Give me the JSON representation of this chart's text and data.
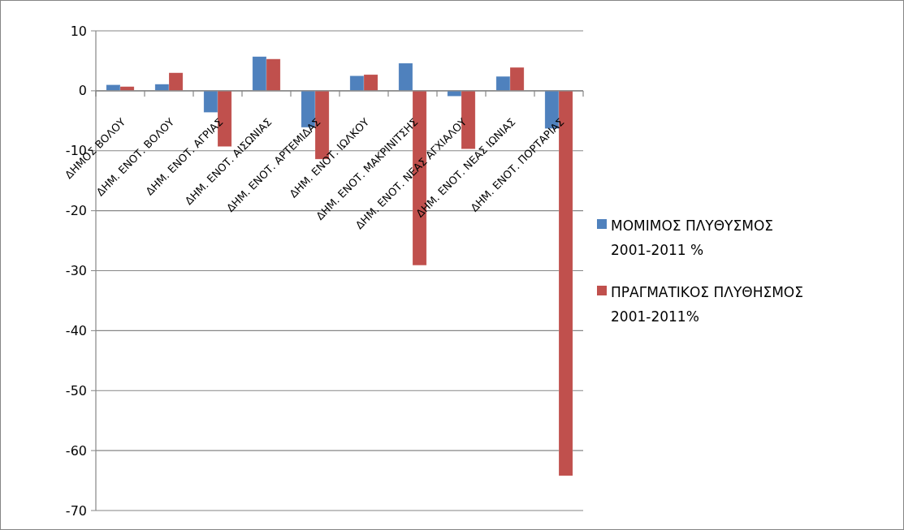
{
  "chart_data": {
    "type": "bar",
    "categories": [
      "ΔΗΜΟΣ ΒΟΛΟΥ",
      "ΔΗΜ. ΕΝΟΤ. ΒΟΛΟΥ",
      "ΔΗΜ. ΕΝΟΤ. ΑΓΡΙΑΣ",
      "ΔΗΜ. ΕΝΟΤ. ΑΙΣΩΝΙΑΣ",
      "ΔΗΜ. ΕΝΟΤ. ΑΡΤΕΜΙΔΑΣ",
      "ΔΗΜ. ΕΝΟΤ. ΙΩΛΚΟΥ",
      "ΔΗΜ. ΕΝΟΤ. ΜΑΚΡΙΝΙΤΣΗΣ",
      "ΔΗΜ. ΕΝΟΤ. ΝΕΑΣ ΑΓΧΙΑΛΟΥ",
      "ΔΗΜ. ΕΝΟΤ. ΝΕΑΣ ΙΩΝΙΑΣ",
      "ΔΗΜ. ΕΝΟΤ. ΠΟΡΤΑΡΙΑΣ"
    ],
    "series": [
      {
        "name": "ΜΟΜΙΜΟΣ ΠΛΥΘΥΣΜΟΣ 2001-2011 %",
        "color": "#4f81bd",
        "values": [
          1.0,
          1.1,
          -3.6,
          5.7,
          -6.1,
          2.5,
          4.6,
          -0.9,
          2.4,
          -6.3
        ]
      },
      {
        "name": "ΠΡΑΓΜΑΤΙΚΟΣ ΠΛΥΘΗΣΜΟΣ 2001-2011%",
        "color": "#c0504d",
        "values": [
          0.7,
          3.0,
          -9.3,
          5.3,
          -11.4,
          2.7,
          -29.1,
          -9.7,
          3.9,
          -64.2
        ]
      }
    ],
    "ylim": [
      -70,
      10
    ],
    "yticks": [
      10,
      0,
      -10,
      -20,
      -30,
      -40,
      -50,
      -60,
      -70
    ],
    "grid": "y",
    "legend": "right"
  }
}
